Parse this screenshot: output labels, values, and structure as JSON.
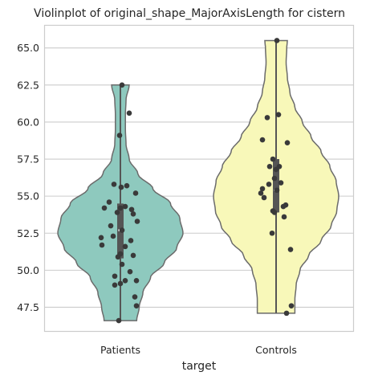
{
  "chart_data": {
    "type": "violin",
    "title": "Violinplot of original_shape_MajorAxisLength for cistern",
    "xlabel": "target",
    "ylabel": "",
    "categories": [
      "Patients",
      "Controls"
    ],
    "ylim": [
      45.9,
      66.5
    ],
    "yticks": [
      47.5,
      50.0,
      52.5,
      55.0,
      57.5,
      60.0,
      62.5,
      65.0
    ],
    "ytick_labels": [
      "47.5",
      "50.0",
      "52.5",
      "55.0",
      "57.5",
      "60.0",
      "62.5",
      "65.0"
    ],
    "grid": "horizontal",
    "colors": {
      "Patients": "#8ec9be",
      "Controls": "#f8f8b9",
      "outline": "#6b6b6b",
      "points": "#3a3a3a"
    },
    "series": [
      {
        "category": "Patients",
        "min": 46.6,
        "max": 62.5,
        "q1": 50.8,
        "median": 52.7,
        "q3": 54.5,
        "density_profile": [
          [
            46.6,
            0.26
          ],
          [
            47.5,
            0.3
          ],
          [
            48.5,
            0.36
          ],
          [
            49.5,
            0.48
          ],
          [
            50.5,
            0.7
          ],
          [
            51.5,
            0.9
          ],
          [
            52.5,
            1.0
          ],
          [
            53.5,
            0.95
          ],
          [
            54.5,
            0.8
          ],
          [
            55.5,
            0.52
          ],
          [
            56.5,
            0.28
          ],
          [
            57.5,
            0.14
          ],
          [
            58.5,
            0.09
          ],
          [
            59.5,
            0.08
          ],
          [
            60.5,
            0.08
          ],
          [
            61.5,
            0.09
          ],
          [
            62.5,
            0.14
          ]
        ],
        "points": [
          [
            0.02,
            62.5
          ],
          [
            0.11,
            60.6
          ],
          [
            -0.01,
            59.1
          ],
          [
            -0.08,
            55.8
          ],
          [
            0.01,
            55.6
          ],
          [
            0.08,
            55.7
          ],
          [
            0.19,
            55.2
          ],
          [
            0.06,
            54.3
          ],
          [
            -0.14,
            54.6
          ],
          [
            -0.2,
            54.2
          ],
          [
            0.14,
            54.1
          ],
          [
            0.0,
            54.2
          ],
          [
            0.16,
            53.8
          ],
          [
            -0.04,
            53.9
          ],
          [
            0.21,
            53.3
          ],
          [
            -0.12,
            53.0
          ],
          [
            0.02,
            52.7
          ],
          [
            -0.24,
            52.2
          ],
          [
            -0.09,
            52.3
          ],
          [
            0.13,
            52.0
          ],
          [
            -0.23,
            51.7
          ],
          [
            0.06,
            51.6
          ],
          [
            0.0,
            51.1
          ],
          [
            0.16,
            51.0
          ],
          [
            -0.03,
            50.9
          ],
          [
            0.02,
            50.4
          ],
          [
            0.12,
            49.9
          ],
          [
            -0.07,
            49.6
          ],
          [
            0.06,
            49.3
          ],
          [
            0.2,
            49.3
          ],
          [
            0.0,
            49.1
          ],
          [
            -0.07,
            49.0
          ],
          [
            0.18,
            48.2
          ],
          [
            0.2,
            47.6
          ],
          [
            -0.02,
            46.6
          ]
        ]
      },
      {
        "category": "Controls",
        "min": 47.1,
        "max": 65.5,
        "q1": 53.9,
        "median": 55.4,
        "q3": 57.5,
        "density_profile": [
          [
            47.1,
            0.3
          ],
          [
            48.0,
            0.3
          ],
          [
            49.0,
            0.32
          ],
          [
            50.0,
            0.38
          ],
          [
            51.0,
            0.52
          ],
          [
            52.0,
            0.72
          ],
          [
            53.0,
            0.88
          ],
          [
            54.0,
            0.97
          ],
          [
            55.0,
            1.0
          ],
          [
            56.0,
            0.96
          ],
          [
            57.0,
            0.86
          ],
          [
            58.0,
            0.72
          ],
          [
            59.0,
            0.56
          ],
          [
            60.0,
            0.42
          ],
          [
            61.0,
            0.3
          ],
          [
            62.0,
            0.22
          ],
          [
            63.0,
            0.18
          ],
          [
            64.0,
            0.16
          ],
          [
            65.0,
            0.17
          ],
          [
            65.5,
            0.18
          ]
        ],
        "points": [
          [
            0.01,
            65.5
          ],
          [
            0.03,
            60.5
          ],
          [
            -0.11,
            60.3
          ],
          [
            -0.17,
            58.8
          ],
          [
            0.14,
            58.6
          ],
          [
            -0.04,
            57.5
          ],
          [
            -0.08,
            57.0
          ],
          [
            0.04,
            57.0
          ],
          [
            0.0,
            56.8
          ],
          [
            -0.02,
            56.2
          ],
          [
            0.06,
            55.9
          ],
          [
            -0.09,
            55.8
          ],
          [
            -0.17,
            55.5
          ],
          [
            -0.19,
            55.2
          ],
          [
            0.01,
            55.4
          ],
          [
            -0.15,
            54.9
          ],
          [
            0.12,
            54.4
          ],
          [
            0.09,
            54.3
          ],
          [
            -0.04,
            54.0
          ],
          [
            -0.02,
            53.9
          ],
          [
            0.1,
            53.6
          ],
          [
            -0.05,
            52.5
          ],
          [
            0.18,
            51.4
          ],
          [
            0.19,
            47.6
          ],
          [
            0.13,
            47.1
          ]
        ]
      }
    ]
  }
}
